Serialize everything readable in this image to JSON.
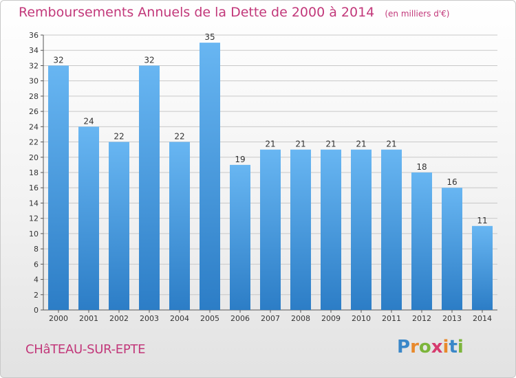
{
  "header": {
    "title": "Remboursements Annuels de la Dette de 2000 à 2014",
    "unit": "(en milliers d'€)"
  },
  "footer": {
    "commune": "CHâTEAU-SUR-EPTE",
    "logo": "Proxiti"
  },
  "colors": {
    "title": "#c2387a",
    "bar_top": "#68b6f2",
    "bar_bottom": "#2c7dc6",
    "grid": "#c8c8c8"
  },
  "chart_data": {
    "type": "bar",
    "title": "Remboursements Annuels de la Dette de 2000 à 2014",
    "subtitle": "(en milliers d'€)",
    "xlabel": "",
    "ylabel": "",
    "categories": [
      "2000",
      "2001",
      "2002",
      "2003",
      "2004",
      "2005",
      "2006",
      "2007",
      "2008",
      "2009",
      "2010",
      "2011",
      "2012",
      "2013",
      "2014"
    ],
    "values": [
      32,
      24,
      22,
      32,
      22,
      35,
      19,
      21,
      21,
      21,
      21,
      21,
      18,
      16,
      11
    ],
    "ylim": [
      0,
      36
    ],
    "yticks": [
      0,
      2,
      4,
      6,
      8,
      10,
      12,
      14,
      16,
      18,
      20,
      22,
      24,
      26,
      28,
      30,
      32,
      34,
      36
    ],
    "grid": true,
    "data_labels": true
  }
}
